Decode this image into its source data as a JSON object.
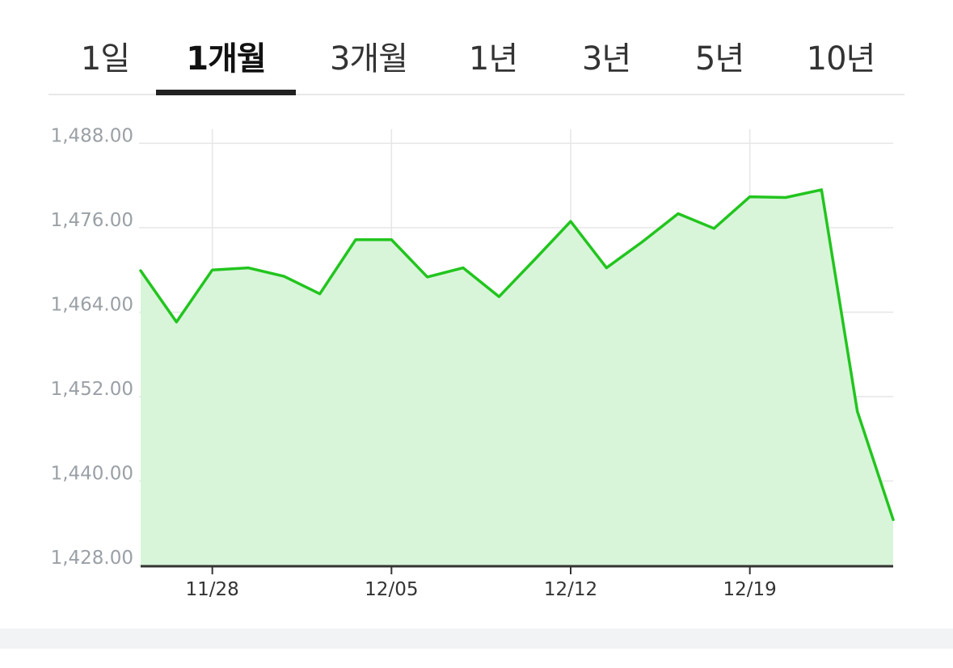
{
  "tabs": [
    {
      "label": "1일",
      "active": false
    },
    {
      "label": "1개월",
      "active": true
    },
    {
      "label": "3개월",
      "active": false
    },
    {
      "label": "1년",
      "active": false
    },
    {
      "label": "3년",
      "active": false
    },
    {
      "label": "5년",
      "active": false
    },
    {
      "label": "10년",
      "active": false
    }
  ],
  "colors": {
    "line": "#22c51e",
    "fill": "#d8f5da",
    "grid": "#e6e6e6",
    "axis": "#333333",
    "ytick": "#9aa0a6",
    "xtick": "#333333"
  },
  "chart_data": {
    "type": "area",
    "title": "",
    "xlabel": "",
    "ylabel": "",
    "ylim": [
      1428,
      1490
    ],
    "yticks": [
      1428,
      1440,
      1452,
      1464,
      1476,
      1488
    ],
    "ytick_labels": [
      "1,428.00",
      "1,440.00",
      "1,452.00",
      "1,464.00",
      "1,476.00",
      "1,488.00"
    ],
    "xtick_labels": [
      "11/28",
      "12/05",
      "12/12",
      "12/19"
    ],
    "xtick_index": [
      2,
      7,
      12,
      17
    ],
    "grid": true,
    "series": [
      {
        "values": [
          1469.9,
          1462.6,
          1470.0,
          1470.3,
          1469.1,
          1466.6,
          1474.3,
          1474.3,
          1469.0,
          1470.3,
          1466.2,
          1471.5,
          1476.9,
          1470.3,
          1474.0,
          1478.0,
          1475.9,
          1480.4,
          1480.3,
          1481.4,
          1449.9,
          1434.5
        ]
      }
    ]
  }
}
